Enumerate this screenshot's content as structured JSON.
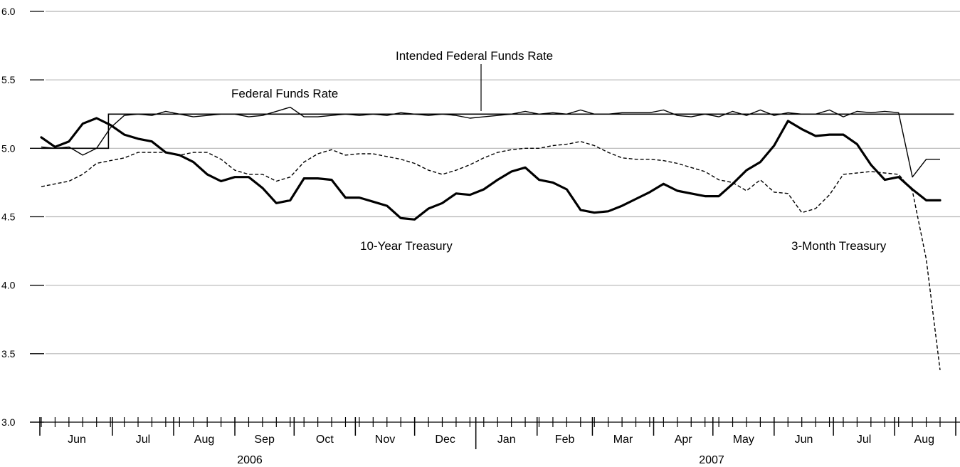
{
  "chart_data": {
    "type": "line",
    "ylim": [
      3.0,
      6.0
    ],
    "y_ticks": [
      "6.0",
      "5.5",
      "5.0",
      "4.5",
      "4.0",
      "3.5",
      "3.0"
    ],
    "grid": true,
    "months": [
      "Jun",
      "Jul",
      "Aug",
      "Sep",
      "Oct",
      "Nov",
      "Dec",
      "Jan",
      "Feb",
      "Mar",
      "Apr",
      "May",
      "Jun",
      "Jul",
      "Aug"
    ],
    "years": [
      "2006",
      "2007"
    ],
    "annotations": {
      "intended": "Intended Federal Funds Rate",
      "fedfunds": "Federal Funds Rate",
      "tenyear": "10-Year Treasury",
      "threemonth": "3-Month Treasury"
    },
    "series": [
      {
        "key": "intended",
        "style": "thin-step",
        "x": [
          "2006-05-26",
          "2006-06-29",
          "2006-06-29",
          "2007-08-31"
        ],
        "y": [
          5.0,
          5.0,
          5.25,
          5.25
        ]
      },
      {
        "key": "fedfunds",
        "style": "thin",
        "x": [
          "2006-05-26",
          "2006-06-02",
          "2006-06-09",
          "2006-06-16",
          "2006-06-23",
          "2006-06-30",
          "2006-07-07",
          "2006-07-14",
          "2006-07-21",
          "2006-07-28",
          "2006-08-04",
          "2006-08-11",
          "2006-08-18",
          "2006-08-25",
          "2006-09-01",
          "2006-09-08",
          "2006-09-15",
          "2006-09-22",
          "2006-09-29",
          "2006-10-06",
          "2006-10-13",
          "2006-10-20",
          "2006-10-27",
          "2006-11-03",
          "2006-11-10",
          "2006-11-17",
          "2006-11-24",
          "2006-12-01",
          "2006-12-08",
          "2006-12-15",
          "2006-12-22",
          "2006-12-29",
          "2007-01-05",
          "2007-01-12",
          "2007-01-19",
          "2007-01-26",
          "2007-02-02",
          "2007-02-09",
          "2007-02-16",
          "2007-02-23",
          "2007-03-02",
          "2007-03-09",
          "2007-03-16",
          "2007-03-23",
          "2007-03-30",
          "2007-04-06",
          "2007-04-13",
          "2007-04-20",
          "2007-04-27",
          "2007-05-04",
          "2007-05-11",
          "2007-05-18",
          "2007-05-25",
          "2007-06-01",
          "2007-06-08",
          "2007-06-15",
          "2007-06-22",
          "2007-06-29",
          "2007-07-06",
          "2007-07-13",
          "2007-07-20",
          "2007-07-27",
          "2007-08-03",
          "2007-08-10",
          "2007-08-17",
          "2007-08-24"
        ],
        "y": [
          5.01,
          5.0,
          5.01,
          4.95,
          5.0,
          5.15,
          5.24,
          5.25,
          5.24,
          5.27,
          5.25,
          5.23,
          5.24,
          5.25,
          5.25,
          5.23,
          5.24,
          5.27,
          5.3,
          5.23,
          5.23,
          5.24,
          5.25,
          5.24,
          5.25,
          5.24,
          5.26,
          5.25,
          5.24,
          5.25,
          5.24,
          5.22,
          5.23,
          5.24,
          5.25,
          5.27,
          5.25,
          5.26,
          5.25,
          5.28,
          5.25,
          5.25,
          5.26,
          5.26,
          5.26,
          5.28,
          5.24,
          5.23,
          5.25,
          5.23,
          5.27,
          5.24,
          5.28,
          5.24,
          5.26,
          5.25,
          5.25,
          5.28,
          5.23,
          5.27,
          5.26,
          5.27,
          5.26,
          4.79,
          4.92,
          4.92
        ]
      },
      {
        "key": "tenyear",
        "style": "thick",
        "x": [
          "2006-05-26",
          "2006-06-02",
          "2006-06-09",
          "2006-06-16",
          "2006-06-23",
          "2006-06-30",
          "2006-07-07",
          "2006-07-14",
          "2006-07-21",
          "2006-07-28",
          "2006-08-04",
          "2006-08-11",
          "2006-08-18",
          "2006-08-25",
          "2006-09-01",
          "2006-09-08",
          "2006-09-15",
          "2006-09-22",
          "2006-09-29",
          "2006-10-06",
          "2006-10-13",
          "2006-10-20",
          "2006-10-27",
          "2006-11-03",
          "2006-11-10",
          "2006-11-17",
          "2006-11-24",
          "2006-12-01",
          "2006-12-08",
          "2006-12-15",
          "2006-12-22",
          "2006-12-29",
          "2007-01-05",
          "2007-01-12",
          "2007-01-19",
          "2007-01-26",
          "2007-02-02",
          "2007-02-09",
          "2007-02-16",
          "2007-02-23",
          "2007-03-02",
          "2007-03-09",
          "2007-03-16",
          "2007-03-23",
          "2007-03-30",
          "2007-04-06",
          "2007-04-13",
          "2007-04-20",
          "2007-04-27",
          "2007-05-04",
          "2007-05-11",
          "2007-05-18",
          "2007-05-25",
          "2007-06-01",
          "2007-06-08",
          "2007-06-15",
          "2007-06-22",
          "2007-06-29",
          "2007-07-06",
          "2007-07-13",
          "2007-07-20",
          "2007-07-27",
          "2007-08-03",
          "2007-08-10",
          "2007-08-17",
          "2007-08-24"
        ],
        "y": [
          5.08,
          5.01,
          5.05,
          5.18,
          5.22,
          5.17,
          5.1,
          5.07,
          5.05,
          4.97,
          4.95,
          4.9,
          4.81,
          4.76,
          4.79,
          4.79,
          4.71,
          4.6,
          4.62,
          4.78,
          4.78,
          4.77,
          4.64,
          4.64,
          4.61,
          4.58,
          4.49,
          4.48,
          4.56,
          4.6,
          4.67,
          4.66,
          4.7,
          4.77,
          4.83,
          4.86,
          4.77,
          4.75,
          4.7,
          4.55,
          4.53,
          4.54,
          4.58,
          4.63,
          4.68,
          4.74,
          4.69,
          4.67,
          4.65,
          4.65,
          4.74,
          4.84,
          4.9,
          5.02,
          5.2,
          5.14,
          5.09,
          5.1,
          5.1,
          5.03,
          4.88,
          4.77,
          4.79,
          4.7,
          4.62,
          4.62
        ]
      },
      {
        "key": "threemonth",
        "style": "dashed",
        "x": [
          "2006-05-26",
          "2006-06-02",
          "2006-06-09",
          "2006-06-16",
          "2006-06-23",
          "2006-06-30",
          "2006-07-07",
          "2006-07-14",
          "2006-07-21",
          "2006-07-28",
          "2006-08-04",
          "2006-08-11",
          "2006-08-18",
          "2006-08-25",
          "2006-09-01",
          "2006-09-08",
          "2006-09-15",
          "2006-09-22",
          "2006-09-29",
          "2006-10-06",
          "2006-10-13",
          "2006-10-20",
          "2006-10-27",
          "2006-11-03",
          "2006-11-10",
          "2006-11-17",
          "2006-11-24",
          "2006-12-01",
          "2006-12-08",
          "2006-12-15",
          "2006-12-22",
          "2006-12-29",
          "2007-01-05",
          "2007-01-12",
          "2007-01-19",
          "2007-01-26",
          "2007-02-02",
          "2007-02-09",
          "2007-02-16",
          "2007-02-23",
          "2007-03-02",
          "2007-03-09",
          "2007-03-16",
          "2007-03-23",
          "2007-03-30",
          "2007-04-06",
          "2007-04-13",
          "2007-04-20",
          "2007-04-27",
          "2007-05-04",
          "2007-05-11",
          "2007-05-18",
          "2007-05-25",
          "2007-06-01",
          "2007-06-08",
          "2007-06-15",
          "2007-06-22",
          "2007-06-29",
          "2007-07-06",
          "2007-07-13",
          "2007-07-20",
          "2007-07-27",
          "2007-08-03",
          "2007-08-10",
          "2007-08-17",
          "2007-08-24"
        ],
        "y": [
          4.72,
          4.74,
          4.76,
          4.81,
          4.89,
          4.91,
          4.93,
          4.97,
          4.97,
          4.97,
          4.95,
          4.97,
          4.97,
          4.92,
          4.84,
          4.81,
          4.81,
          4.76,
          4.79,
          4.9,
          4.96,
          4.99,
          4.95,
          4.96,
          4.96,
          4.94,
          4.92,
          4.89,
          4.84,
          4.81,
          4.84,
          4.88,
          4.93,
          4.97,
          4.99,
          5.0,
          5.0,
          5.02,
          5.03,
          5.05,
          5.02,
          4.97,
          4.93,
          4.92,
          4.92,
          4.91,
          4.89,
          4.86,
          4.83,
          4.77,
          4.75,
          4.69,
          4.77,
          4.68,
          4.67,
          4.53,
          4.56,
          4.66,
          4.81,
          4.82,
          4.83,
          4.82,
          4.81,
          4.69,
          4.19,
          3.38
        ]
      }
    ]
  }
}
